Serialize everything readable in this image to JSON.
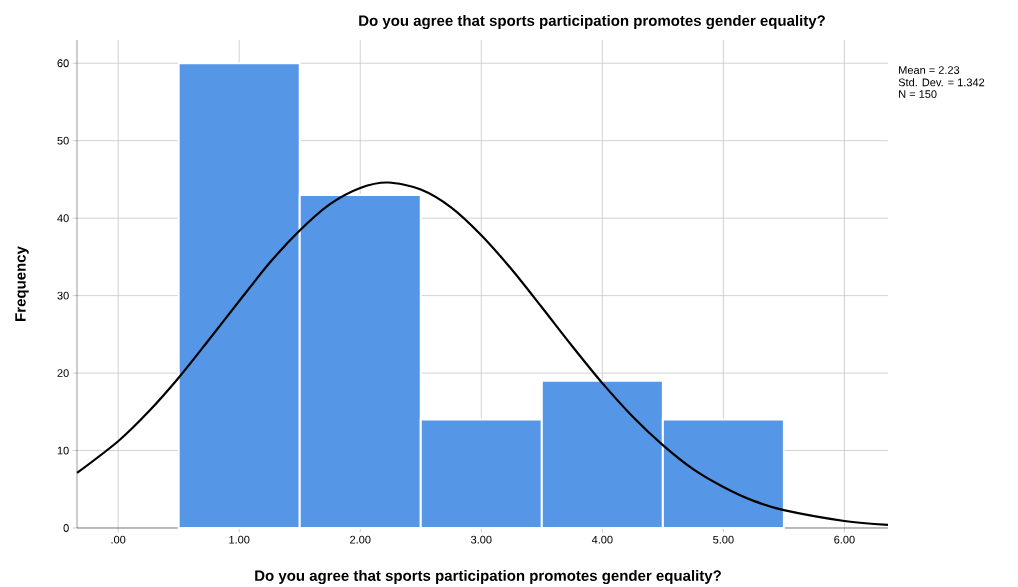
{
  "chart_data": {
    "type": "histogram",
    "title": "Do you agree that sports participation promotes gender equality?",
    "xlabel": "Do you agree that sports participation promotes gender equality?",
    "ylabel": "Frequency",
    "bins": [
      0.5,
      1.5,
      2.5,
      3.5,
      4.5,
      5.5
    ],
    "series": [
      {
        "color": "#5596e6",
        "values": [
          60,
          43,
          14,
          19,
          14
        ]
      },
      {
        "type": "line",
        "color": "#000000",
        "x": [
          -0.34,
          0,
          0.25,
          0.5,
          0.75,
          1,
          1.25,
          1.5,
          1.75,
          2,
          2.23,
          2.5,
          2.75,
          3,
          3.25,
          3.5,
          3.75,
          4,
          4.25,
          4.5,
          4.75,
          5,
          5.25,
          5.5,
          6,
          6.36
        ],
        "values": [
          7.1,
          11.2,
          15.0,
          19.4,
          24.3,
          29.3,
          34.2,
          38.4,
          41.8,
          43.9,
          44.6,
          43.7,
          41.4,
          37.8,
          33.4,
          28.5,
          23.5,
          18.7,
          14.4,
          10.7,
          7.6,
          5.3,
          3.5,
          2.3,
          0.9,
          0.4
        ]
      }
    ],
    "xlim": [
      -0.34,
      6.36
    ],
    "ylim": [
      0,
      63
    ],
    "xticks": [
      {
        "value": 0,
        "label": ".00"
      },
      {
        "value": 1,
        "label": "1.00"
      },
      {
        "value": 2,
        "label": "2.00"
      },
      {
        "value": 3,
        "label": "3.00"
      },
      {
        "value": 4,
        "label": "4.00"
      },
      {
        "value": 5,
        "label": "5.00"
      },
      {
        "value": 6,
        "label": "6.00"
      }
    ],
    "yticks": [
      0,
      10,
      20,
      30,
      40,
      50,
      60
    ],
    "grid": true,
    "annotations": [
      "Mean = 2.23",
      "Std. Dev. = 1.342",
      "N = 150"
    ]
  }
}
